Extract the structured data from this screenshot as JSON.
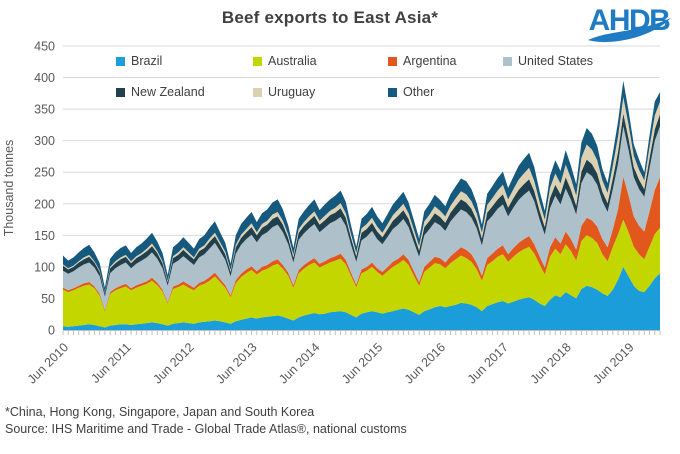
{
  "title": "Beef exports to East Asia*",
  "logo": {
    "text": "AHDB",
    "color": "#1F7BC4"
  },
  "footnotes": [
    "*China, Hong Kong, Singapore, Japan and South Korea",
    "Source: IHS Maritime and Trade - Global Trade Atlas®, national customs"
  ],
  "chart_data": {
    "type": "area",
    "stacked": true,
    "title": "Beef exports to East Asia*",
    "ylabel": "Thousand tonnes",
    "ylim": [
      0,
      450
    ],
    "ytick_step": 50,
    "grid": "horizontal",
    "x_start": "Jun 2010",
    "x_interval": "monthly",
    "x_tick_every": 12,
    "x_tick_labels": [
      "Jun 2010",
      "Jun 2011",
      "Jun 2012",
      "Jun 2013",
      "Jun 2014",
      "Jun 2015",
      "Jun 2016",
      "Jun 2017",
      "Jun 2018",
      "Jun 2019"
    ],
    "legend_position": "top-inside",
    "legend_rows": [
      [
        "Brazil",
        "Australia",
        "Argentina",
        "United States"
      ],
      [
        "New Zealand",
        "Uruguay",
        "Other"
      ]
    ],
    "axis_text_color": "#595959",
    "grid_color": "#d9d9d9",
    "series": [
      {
        "name": "Brazil",
        "color": "#1A9DD9",
        "values": [
          6,
          5,
          6,
          7,
          8,
          9,
          8,
          6,
          4,
          7,
          8,
          9,
          9,
          8,
          9,
          10,
          11,
          12,
          11,
          9,
          7,
          10,
          11,
          12,
          11,
          10,
          12,
          13,
          14,
          15,
          14,
          12,
          10,
          14,
          16,
          18,
          20,
          18,
          20,
          21,
          22,
          23,
          21,
          18,
          15,
          20,
          23,
          25,
          27,
          25,
          26,
          28,
          29,
          30,
          28,
          24,
          20,
          26,
          28,
          30,
          28,
          26,
          28,
          30,
          32,
          34,
          32,
          28,
          24,
          30,
          33,
          36,
          38,
          36,
          38,
          40,
          43,
          42,
          40,
          36,
          30,
          38,
          41,
          44,
          46,
          42,
          45,
          48,
          50,
          52,
          48,
          42,
          38,
          48,
          55,
          52,
          60,
          55,
          50,
          65,
          70,
          68,
          64,
          58,
          54,
          64,
          80,
          100,
          85,
          70,
          62,
          60,
          70,
          82,
          90
        ]
      },
      {
        "name": "Australia",
        "color": "#C4D600",
        "values": [
          58,
          55,
          57,
          60,
          62,
          63,
          58,
          48,
          25,
          50,
          55,
          57,
          60,
          55,
          58,
          60,
          62,
          66,
          60,
          52,
          35,
          55,
          57,
          60,
          56,
          53,
          58,
          60,
          64,
          70,
          62,
          55,
          42,
          60,
          68,
          72,
          75,
          70,
          74,
          76,
          80,
          82,
          76,
          68,
          52,
          70,
          74,
          78,
          80,
          74,
          77,
          79,
          81,
          83,
          76,
          62,
          48,
          64,
          66,
          70,
          64,
          60,
          65,
          70,
          73,
          77,
          71,
          58,
          46,
          62,
          66,
          70,
          66,
          62,
          68,
          72,
          75,
          72,
          68,
          60,
          48,
          65,
          68,
          72,
          74,
          66,
          71,
          75,
          78,
          80,
          73,
          62,
          50,
          68,
          74,
          68,
          76,
          70,
          60,
          76,
          80,
          78,
          74,
          62,
          55,
          68,
          72,
          75,
          70,
          62,
          58,
          52,
          62,
          70,
          72
        ]
      },
      {
        "name": "Argentina",
        "color": "#E2581C",
        "values": [
          3,
          3,
          3,
          3,
          4,
          4,
          3,
          3,
          2,
          3,
          3,
          4,
          4,
          3,
          4,
          4,
          4,
          5,
          4,
          3,
          2,
          4,
          4,
          5,
          5,
          4,
          5,
          5,
          6,
          6,
          5,
          4,
          3,
          5,
          5,
          6,
          6,
          5,
          6,
          6,
          7,
          7,
          6,
          5,
          4,
          5,
          6,
          6,
          7,
          6,
          6,
          7,
          7,
          8,
          7,
          5,
          4,
          6,
          6,
          7,
          6,
          6,
          7,
          8,
          8,
          9,
          8,
          7,
          6,
          8,
          9,
          10,
          10,
          9,
          11,
          12,
          13,
          13,
          12,
          10,
          8,
          11,
          12,
          13,
          14,
          12,
          14,
          15,
          16,
          17,
          15,
          13,
          11,
          15,
          18,
          17,
          20,
          19,
          17,
          24,
          28,
          28,
          26,
          24,
          22,
          28,
          40,
          68,
          58,
          48,
          45,
          44,
          56,
          70,
          80
        ]
      },
      {
        "name": "United States",
        "color": "#AEC1CB",
        "values": [
          27,
          26,
          27,
          29,
          30,
          31,
          30,
          28,
          22,
          30,
          32,
          33,
          34,
          32,
          34,
          36,
          38,
          40,
          38,
          34,
          26,
          36,
          38,
          40,
          38,
          36,
          40,
          42,
          45,
          47,
          44,
          40,
          30,
          42,
          46,
          48,
          50,
          46,
          50,
          52,
          54,
          55,
          52,
          45,
          36,
          48,
          50,
          52,
          54,
          50,
          53,
          55,
          56,
          58,
          54,
          44,
          36,
          46,
          48,
          50,
          46,
          44,
          48,
          52,
          54,
          56,
          52,
          46,
          40,
          50,
          52,
          55,
          52,
          50,
          55,
          58,
          60,
          60,
          58,
          55,
          48,
          58,
          60,
          63,
          65,
          60,
          64,
          68,
          70,
          72,
          68,
          58,
          52,
          62,
          66,
          62,
          68,
          62,
          56,
          68,
          72,
          70,
          66,
          60,
          56,
          64,
          72,
          80,
          72,
          62,
          58,
          55,
          68,
          78,
          81
        ]
      },
      {
        "name": "New Zealand",
        "color": "#20404E",
        "values": [
          8,
          7,
          7,
          8,
          8,
          9,
          8,
          7,
          5,
          8,
          8,
          9,
          9,
          8,
          9,
          9,
          10,
          10,
          9,
          8,
          6,
          9,
          9,
          10,
          9,
          9,
          10,
          10,
          11,
          11,
          10,
          9,
          7,
          10,
          11,
          11,
          12,
          11,
          12,
          12,
          13,
          13,
          12,
          10,
          8,
          11,
          12,
          12,
          13,
          12,
          12,
          13,
          13,
          14,
          13,
          11,
          9,
          12,
          12,
          13,
          12,
          11,
          12,
          13,
          14,
          14,
          13,
          12,
          10,
          13,
          13,
          14,
          13,
          13,
          14,
          15,
          16,
          15,
          14,
          13,
          11,
          14,
          15,
          15,
          16,
          14,
          15,
          16,
          17,
          18,
          16,
          14,
          12,
          16,
          17,
          16,
          18,
          16,
          14,
          18,
          20,
          19,
          18,
          15,
          14,
          17,
          19,
          20,
          18,
          16,
          15,
          12,
          16,
          18,
          19
        ]
      },
      {
        "name": "Uruguay",
        "color": "#DCD1B2",
        "values": [
          2,
          2,
          2,
          2,
          3,
          3,
          2,
          2,
          1,
          2,
          3,
          3,
          3,
          3,
          3,
          3,
          4,
          4,
          3,
          3,
          2,
          3,
          4,
          4,
          4,
          3,
          4,
          4,
          5,
          5,
          4,
          4,
          3,
          4,
          5,
          5,
          6,
          5,
          6,
          6,
          7,
          7,
          6,
          5,
          4,
          6,
          6,
          7,
          7,
          6,
          7,
          7,
          8,
          8,
          7,
          6,
          5,
          7,
          8,
          8,
          8,
          7,
          8,
          9,
          10,
          10,
          9,
          8,
          7,
          9,
          10,
          11,
          10,
          10,
          11,
          12,
          13,
          13,
          12,
          11,
          9,
          12,
          13,
          14,
          15,
          13,
          14,
          16,
          17,
          18,
          16,
          14,
          12,
          16,
          18,
          17,
          20,
          18,
          16,
          22,
          24,
          23,
          21,
          18,
          16,
          20,
          24,
          26,
          22,
          18,
          16,
          14,
          18,
          22,
          20
        ]
      },
      {
        "name": "Other",
        "color": "#15597E",
        "values": [
          14,
          12,
          13,
          14,
          15,
          16,
          14,
          12,
          8,
          13,
          14,
          15,
          15,
          13,
          14,
          15,
          16,
          17,
          15,
          13,
          9,
          14,
          15,
          16,
          15,
          14,
          15,
          16,
          17,
          18,
          16,
          14,
          10,
          15,
          17,
          18,
          18,
          16,
          17,
          18,
          19,
          20,
          18,
          15,
          11,
          16,
          17,
          18,
          19,
          17,
          18,
          18,
          19,
          20,
          18,
          14,
          10,
          15,
          16,
          17,
          16,
          15,
          16,
          17,
          18,
          19,
          17,
          15,
          12,
          16,
          17,
          18,
          17,
          16,
          18,
          19,
          20,
          21,
          19,
          16,
          13,
          18,
          19,
          20,
          21,
          18,
          20,
          22,
          23,
          24,
          22,
          17,
          14,
          19,
          21,
          20,
          23,
          20,
          18,
          24,
          26,
          25,
          23,
          18,
          16,
          20,
          24,
          26,
          22,
          18,
          16,
          13,
          18,
          22,
          15
        ]
      }
    ]
  }
}
